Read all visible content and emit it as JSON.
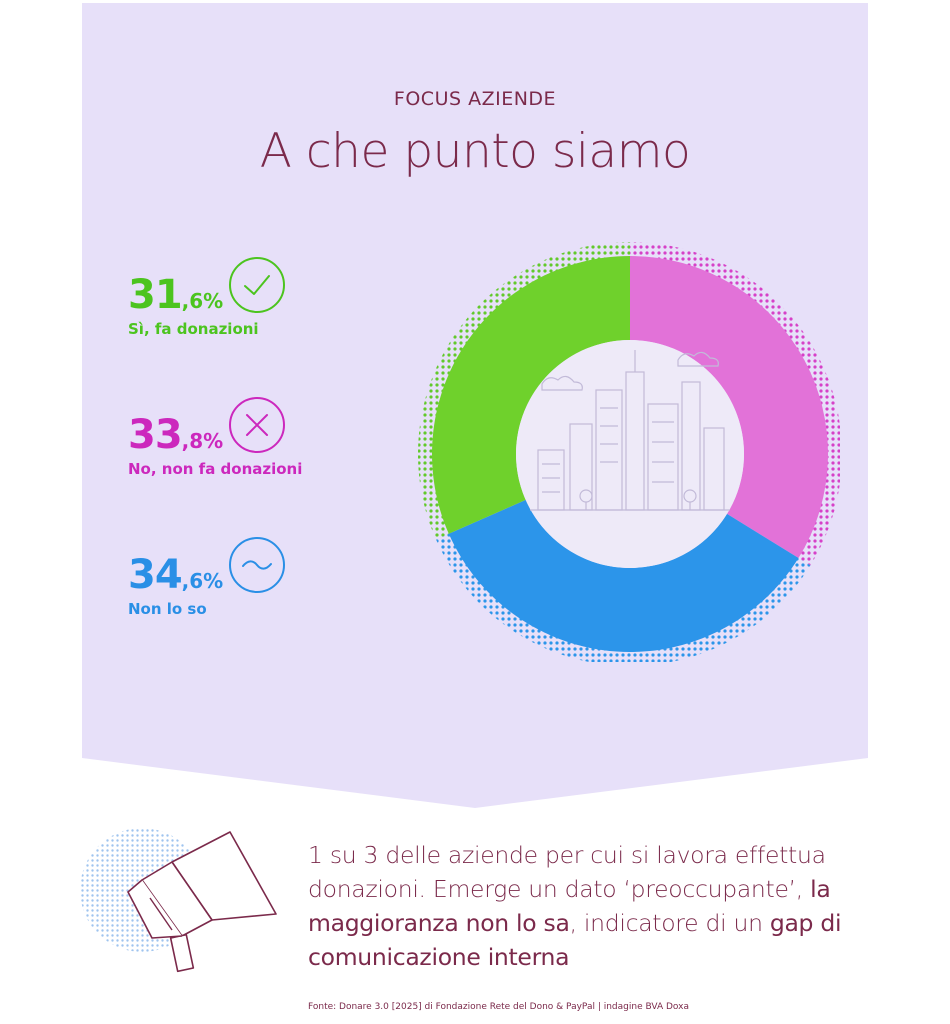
{
  "kicker": "FOCUS AZIENDE",
  "title": "A che punto siamo",
  "stats": [
    {
      "int": "31",
      "dec": ",6%",
      "label": "Sì, fa donazioni"
    },
    {
      "int": "33",
      "dec": ",8%",
      "label": "No, non fa donazioni"
    },
    {
      "int": "34",
      "dec": ",6%",
      "label": "Non lo so"
    }
  ],
  "icons": [
    "check-icon",
    "x-icon",
    "wave-icon"
  ],
  "chart_data": {
    "type": "pie",
    "donut": true,
    "categories": [
      "Sì, fa donazioni",
      "No, non fa donazioni",
      "Non lo so"
    ],
    "values": [
      31.6,
      33.8,
      34.6
    ],
    "colors": [
      "#6fd12c",
      "#e272d8",
      "#2c95ea"
    ],
    "start": "top",
    "order_clockwise": [
      "No, non fa donazioni",
      "Non lo so",
      "Sì, fa donazioni"
    ]
  },
  "summary": {
    "p1": "1 su 3 delle aziende per cui si lavora effettua donazioni. Emerge un dato ‘preoccupante’, ",
    "hl1": "la maggioranza non lo sa",
    "p2": ", indicatore di un ",
    "hl2": "gap di comunicazione interna"
  },
  "source": "Fonte: Donare 3.0 [2025] di Fondazione Rete del Dono & PayPal | indagine BVA Doxa",
  "colors": {
    "background": "#e7e0f9",
    "text": "#7b2a4b",
    "green": "#4cc41f",
    "magenta": "#cc28bd",
    "blue": "#2a8fe6"
  }
}
